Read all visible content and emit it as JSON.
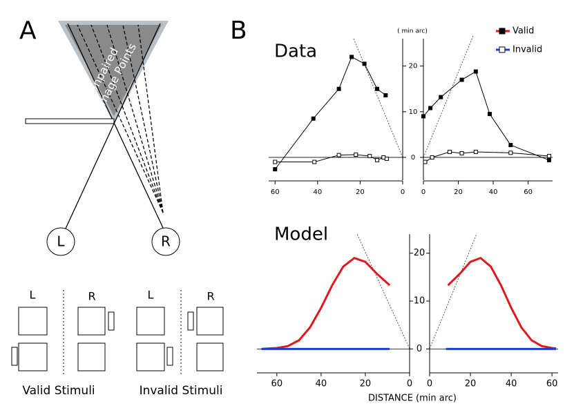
{
  "panel_a": {
    "label": "A",
    "region_label": [
      "Unpaired",
      "Image Points"
    ],
    "eyes": [
      "L",
      "R"
    ],
    "stimulus_columns": [
      "L",
      "R",
      "L",
      "R"
    ],
    "groups": [
      "Valid Stimuli",
      "Invalid Stimuli"
    ]
  },
  "panel_b": {
    "label": "B"
  },
  "chart_data": [
    {
      "type": "line",
      "title": "Data",
      "ylabel": "( min arc)",
      "ylim": [
        -5,
        26
      ],
      "yticks": [
        0,
        10,
        20
      ],
      "panels": [
        {
          "xlim": [
            63,
            0
          ],
          "xticks": [
            60,
            40,
            20,
            0
          ],
          "series": [
            {
              "color": "#000000",
              "marker": "filled",
              "x": [
                60,
                42,
                30,
                24,
                18,
                12,
                8
              ],
              "values": [
                -2.6,
                8.5,
                15,
                22,
                20.5,
                15,
                13.6
              ]
            },
            {
              "color": "#000000",
              "marker": "open",
              "x": [
                60,
                41.5,
                30,
                22,
                15.5,
                12,
                9,
                7.5
              ],
              "values": [
                -1,
                -1,
                0.5,
                0.6,
                0.3,
                -0.6,
                0,
                -0.3
              ]
            }
          ]
        },
        {
          "xlim": [
            0,
            74
          ],
          "xticks": [
            0,
            20,
            40,
            60
          ],
          "series": [
            {
              "color": "#000000",
              "marker": "filled",
              "x": [
                0,
                4,
                10,
                22,
                30,
                38,
                50,
                72
              ],
              "values": [
                9,
                10.8,
                13.2,
                17,
                18.8,
                9.5,
                2.7,
                -0.6
              ]
            },
            {
              "color": "#000000",
              "marker": "open",
              "x": [
                1,
                5,
                15,
                22,
                30,
                50,
                72
              ],
              "values": [
                -1,
                0,
                1.2,
                0.9,
                1.2,
                1,
                0.3
              ]
            }
          ]
        }
      ]
    },
    {
      "type": "line",
      "title": "Model",
      "xlabel": "DISTANCE (min arc)",
      "ylim": [
        -5,
        24
      ],
      "yticks": [
        0,
        10,
        20
      ],
      "panels": [
        {
          "xlim": [
            69,
            0
          ],
          "xticks": [
            60,
            40,
            20,
            0
          ],
          "series": [
            {
              "name": "Valid",
              "color": "#e0181c",
              "x": [
                67,
                60,
                55,
                50,
                45,
                40,
                35,
                30,
                25,
                20,
                15,
                9
              ],
              "values": [
                0,
                0.2,
                0.6,
                1.8,
                4.5,
                8.6,
                13.3,
                17.2,
                19,
                18.2,
                15.8,
                13.3
              ]
            },
            {
              "name": "Invalid",
              "color": "#1a3fd8",
              "x": [
                67,
                9
              ],
              "values": [
                0,
                0
              ]
            }
          ]
        },
        {
          "xlim": [
            0,
            63
          ],
          "xticks": [
            0,
            20,
            40,
            60
          ],
          "series": [
            {
              "name": "Valid",
              "color": "#e0181c",
              "x": [
                9,
                15,
                20,
                25,
                30,
                35,
                40,
                45,
                50,
                55,
                60,
                62
              ],
              "values": [
                13.3,
                15.8,
                18.2,
                19,
                17.2,
                13.3,
                8.6,
                4.5,
                1.8,
                0.6,
                0.2,
                0.1
              ]
            },
            {
              "name": "Invalid",
              "color": "#1a3fd8",
              "x": [
                8,
                62
              ],
              "values": [
                0,
                0
              ]
            }
          ]
        }
      ]
    }
  ]
}
